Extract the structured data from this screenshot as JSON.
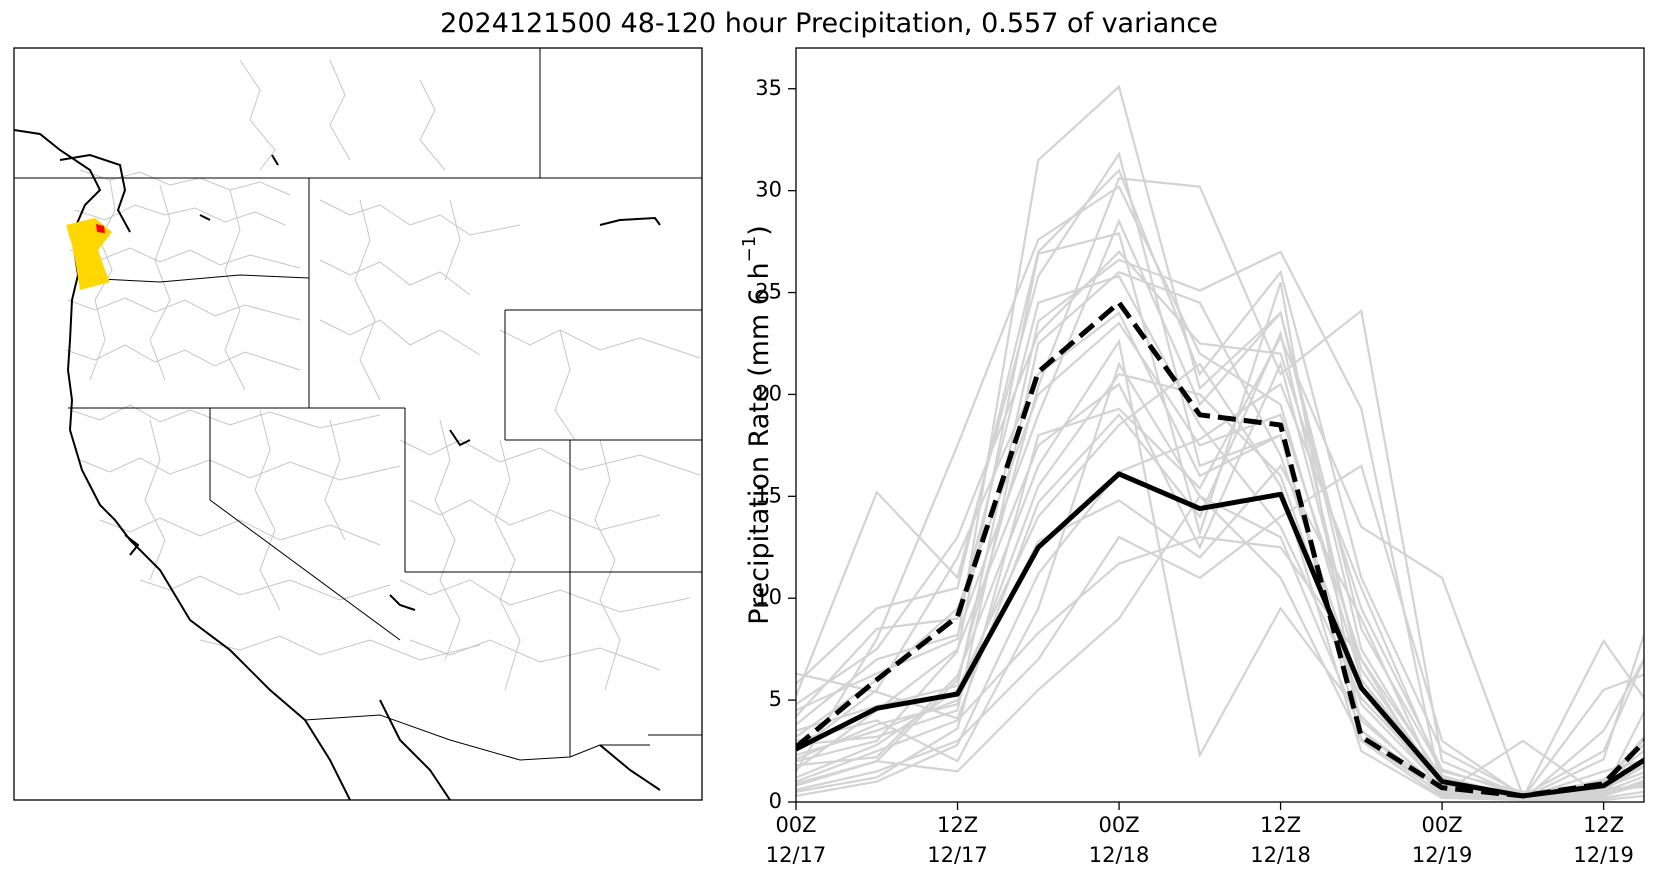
{
  "title": "2024121500 48-120 hour Precipitation, 0.557 of variance",
  "map": {
    "basin_highlight_color": "#FFD700",
    "basin_point_color": "#FF0000",
    "boundary_color": "#000000",
    "basin_line_color": "#BFBFBF"
  },
  "chart_data": {
    "type": "line",
    "ylabel_main": "Precipitation Rate (mm 6 h",
    "ylabel_sup": "−1",
    "ylabel_close": ")",
    "ylim": [
      0,
      37
    ],
    "xlim": [
      0,
      63
    ],
    "y_ticks": [
      "0",
      "5",
      "10",
      "15",
      "20",
      "25",
      "30",
      "35"
    ],
    "y_tick_values": [
      0,
      5,
      10,
      15,
      20,
      25,
      30,
      35
    ],
    "x_ticks": [
      {
        "hour": 0,
        "line1": "00Z",
        "line2": "12/17"
      },
      {
        "hour": 12,
        "line1": "12Z",
        "line2": "12/17"
      },
      {
        "hour": 24,
        "line1": "00Z",
        "line2": "12/18"
      },
      {
        "hour": 36,
        "line1": "12Z",
        "line2": "12/18"
      },
      {
        "hour": 48,
        "line1": "00Z",
        "line2": "12/19"
      },
      {
        "hour": 60,
        "line1": "12Z",
        "line2": "12/19"
      }
    ],
    "x_hours": [
      0,
      6,
      12,
      18,
      24,
      30,
      36,
      42,
      48,
      54,
      60,
      66
    ],
    "bold_series": [
      {
        "style": "solid",
        "color": "#000000",
        "values": [
          2.6,
          4.6,
          5.3,
          12.5,
          16.1,
          14.4,
          15.1,
          5.6,
          1.0,
          0.3,
          0.8,
          3.3
        ]
      },
      {
        "style": "dashed",
        "color": "#000000",
        "values": [
          2.7,
          6.0,
          9.1,
          21.1,
          24.5,
          19.0,
          18.5,
          3.2,
          0.7,
          0.3,
          0.9,
          5.0
        ]
      }
    ],
    "members_color": "#D3D3D3",
    "members": [
      [
        5.2,
        15.2,
        11.0,
        25.8,
        31.8,
        16.5,
        18.0,
        3.1,
        0.4,
        0.1,
        0.5,
        2.0
      ],
      [
        1.5,
        8.0,
        17.5,
        27.6,
        30.2,
        22.0,
        19.5,
        6.0,
        1.1,
        0.2,
        0.3,
        1.5
      ],
      [
        4.5,
        6.3,
        8.0,
        31.5,
        35.1,
        20.3,
        24.0,
        7.5,
        1.0,
        0.4,
        0.6,
        3.0
      ],
      [
        2.0,
        3.0,
        7.4,
        26.9,
        27.9,
        13.2,
        25.5,
        3.5,
        0.6,
        0.2,
        1.1,
        4.5
      ],
      [
        0.8,
        2.0,
        6.0,
        20.4,
        30.6,
        30.2,
        21.0,
        24.1,
        2.0,
        0.3,
        0.6,
        1.0
      ],
      [
        3.5,
        4.7,
        5.7,
        23.6,
        26.6,
        25.1,
        27.0,
        19.3,
        0.5,
        0.2,
        0.2,
        0.8
      ],
      [
        0.5,
        1.2,
        3.6,
        18.0,
        19.3,
        15.4,
        22.8,
        13.5,
        11.0,
        0.3,
        0.4,
        1.2
      ],
      [
        6.3,
        5.4,
        4.1,
        14.7,
        19.0,
        14.0,
        23.0,
        6.0,
        0.8,
        0.2,
        7.9,
        2.3
      ],
      [
        2.3,
        3.5,
        5.0,
        12.8,
        14.8,
        12.0,
        16.5,
        9.0,
        0.5,
        0.1,
        3.5,
        10.5
      ],
      [
        1.0,
        2.5,
        4.0,
        8.3,
        11.7,
        13.0,
        12.5,
        7.0,
        0.3,
        0.2,
        2.1,
        14.3
      ],
      [
        3.0,
        4.0,
        2.0,
        9.5,
        21.5,
        15.0,
        11.0,
        3.0,
        0.2,
        0.1,
        0.5,
        8.3
      ],
      [
        1.8,
        2.2,
        6.2,
        16.5,
        22.6,
        2.3,
        9.5,
        4.2,
        0.4,
        3.0,
        0.2,
        6.0
      ],
      [
        4.2,
        8.5,
        9.0,
        24.5,
        25.8,
        18.5,
        13.5,
        5.1,
        0.9,
        0.2,
        1.5,
        2.6
      ],
      [
        0.3,
        1.0,
        2.8,
        11.2,
        16.2,
        17.8,
        20.5,
        10.5,
        1.3,
        0.1,
        0.1,
        0.5
      ],
      [
        2.5,
        5.5,
        12.0,
        21.0,
        24.0,
        16.0,
        18.0,
        4.0,
        0.6,
        0.3,
        0.7,
        2.2
      ],
      [
        1.2,
        2.8,
        5.5,
        14.0,
        18.5,
        21.5,
        15.5,
        2.5,
        0.2,
        0.2,
        0.4,
        1.6
      ],
      [
        3.8,
        7.0,
        8.2,
        19.0,
        28.5,
        19.5,
        24.0,
        8.5,
        1.5,
        0.5,
        0.8,
        3.5
      ],
      [
        0.6,
        1.5,
        3.0,
        7.0,
        13.0,
        11.0,
        14.0,
        16.5,
        3.0,
        0.3,
        0.6,
        0.9
      ],
      [
        2.8,
        3.2,
        4.5,
        22.5,
        26.0,
        24.5,
        17.0,
        5.5,
        0.5,
        0.1,
        0.3,
        1.8
      ],
      [
        1.6,
        4.5,
        7.5,
        17.5,
        20.5,
        12.5,
        21.5,
        6.5,
        0.9,
        0.2,
        5.5,
        7.0
      ],
      [
        5.8,
        9.5,
        10.5,
        27.0,
        31.0,
        21.0,
        26.0,
        11.0,
        2.5,
        0.4,
        1.0,
        4.0
      ],
      [
        0.9,
        2.0,
        1.5,
        5.5,
        9.0,
        15.0,
        13.0,
        3.5,
        0.3,
        0.2,
        0.5,
        1.1
      ],
      [
        3.2,
        6.0,
        9.5,
        20.0,
        23.5,
        17.5,
        19.0,
        7.0,
        1.2,
        0.3,
        2.5,
        11.5
      ],
      [
        2.1,
        3.8,
        4.8,
        15.5,
        21.0,
        20.0,
        16.0,
        4.8,
        0.7,
        0.2,
        0.6,
        2.9
      ],
      [
        4.8,
        7.5,
        13.0,
        23.0,
        27.0,
        22.5,
        22.0,
        9.5,
        1.6,
        0.3,
        0.9,
        5.5
      ]
    ]
  }
}
